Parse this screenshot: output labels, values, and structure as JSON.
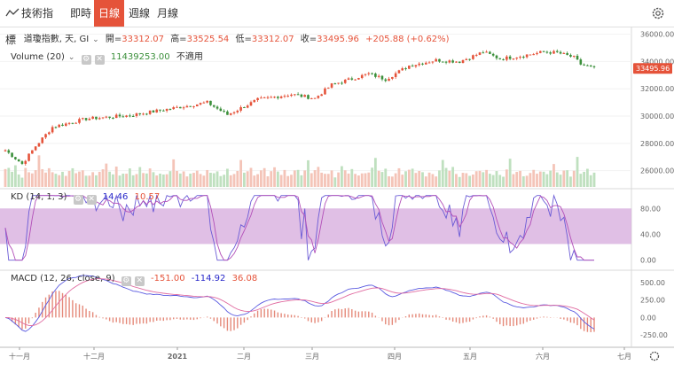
{
  "toolbar": {
    "indicator_label": "技術指標",
    "tabs": [
      {
        "label": "即時",
        "active": false
      },
      {
        "label": "日線",
        "active": true
      },
      {
        "label": "週線",
        "active": false
      },
      {
        "label": "月線",
        "active": false
      }
    ],
    "settings_icon": "gear-icon"
  },
  "legend": {
    "symbol": "道瓊指數, 天, GI",
    "open_label": "開=",
    "open": "33312.07",
    "high_label": "高=",
    "high": "33525.54",
    "low_label": "低=",
    "low": "33312.07",
    "close_label": "收=",
    "close": "33495.96",
    "change": "+205.88 (+0.62%)",
    "volume_label": "Volume (20)",
    "volume_value": "11439253.00",
    "volume_na": "不適用",
    "kd_label": "KD (14, 1, 3)",
    "kd_k": "14.46",
    "kd_d": "10.57",
    "macd_label": "MACD (12, 26, close, 9)",
    "macd_a": "-151.00",
    "macd_b": "-114.92",
    "macd_c": "36.08"
  },
  "colors": {
    "up": "#e5533a",
    "down": "#3a8f3a",
    "kd_band": "#d6a9dc",
    "k_line": "#6b5bd6",
    "d_line": "#b24fb8",
    "macd_line": "#5a5ae0",
    "signal_line": "#e06aa0",
    "accent": "#e5533a"
  },
  "chart_data": [
    {
      "type": "candlestick",
      "price_ticks": [
        "36000.00",
        "34000.00",
        "32000.00",
        "30000.00",
        "28000.00",
        "26000.00"
      ],
      "ylim": [
        25200,
        36300
      ],
      "last_price": "33495.96",
      "x_ticks": [
        "十一月",
        "十二月",
        "2021",
        "二月",
        "三月",
        "四月",
        "五月",
        "六月",
        "七月"
      ],
      "key_points": [
        {
          "i": 0,
          "v": 27500
        },
        {
          "i": 5,
          "v": 26500
        },
        {
          "i": 9,
          "v": 27800
        },
        {
          "i": 14,
          "v": 29200
        },
        {
          "i": 24,
          "v": 29800
        },
        {
          "i": 37,
          "v": 30050
        },
        {
          "i": 48,
          "v": 30500
        },
        {
          "i": 60,
          "v": 31000
        },
        {
          "i": 66,
          "v": 30100
        },
        {
          "i": 75,
          "v": 31200
        },
        {
          "i": 85,
          "v": 31600
        },
        {
          "i": 92,
          "v": 31300
        },
        {
          "i": 97,
          "v": 32300
        },
        {
          "i": 108,
          "v": 33100
        },
        {
          "i": 113,
          "v": 32700
        },
        {
          "i": 120,
          "v": 33700
        },
        {
          "i": 128,
          "v": 34100
        },
        {
          "i": 135,
          "v": 34000
        },
        {
          "i": 142,
          "v": 34700
        },
        {
          "i": 147,
          "v": 34200
        },
        {
          "i": 153,
          "v": 34400
        },
        {
          "i": 160,
          "v": 34700
        },
        {
          "i": 164,
          "v": 34650
        },
        {
          "i": 169,
          "v": 34300
        },
        {
          "i": 171,
          "v": 33800
        },
        {
          "i": 175,
          "v": 33500
        }
      ],
      "volume_levels": [
        0.55,
        0.5,
        0.45,
        0.6,
        0.4,
        0.35,
        0.5,
        0.45,
        0.4,
        0.55,
        0.9,
        0.5,
        0.45,
        0.6,
        0.4,
        0.38,
        0.45,
        0.5,
        0.35,
        0.42
      ]
    },
    {
      "type": "line",
      "name": "KD",
      "ticks": [
        "80.00",
        "40.00",
        "0.00"
      ],
      "ylim": [
        -10,
        105
      ],
      "band": [
        25,
        80
      ]
    },
    {
      "type": "line",
      "name": "MACD",
      "ticks": [
        "500.00",
        "250.00",
        "0.00",
        "-250.00"
      ],
      "ylim": [
        -350,
        600
      ]
    }
  ]
}
